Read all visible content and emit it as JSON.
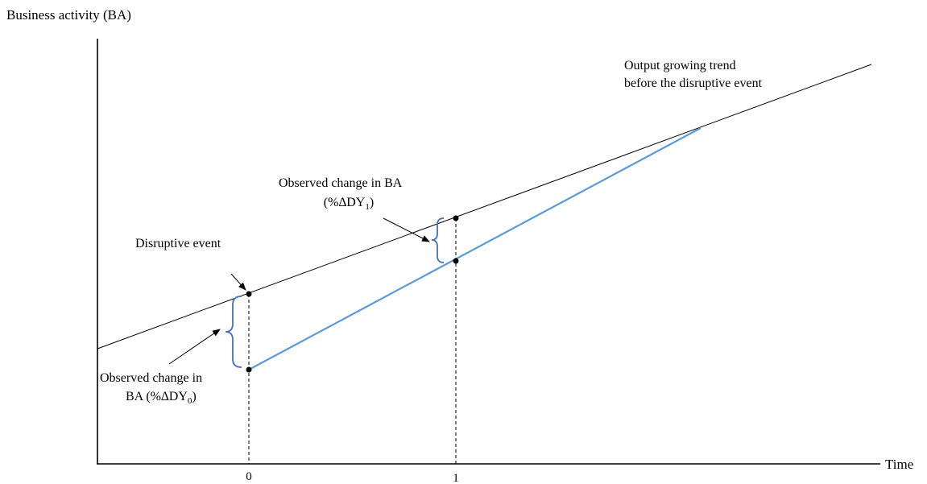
{
  "y_axis_label": "Business activity (BA)",
  "x_axis_label": "Time",
  "x_ticks": [
    "0",
    "1"
  ],
  "trend_label_line1": "Output growing trend",
  "trend_label_line2": "before the disruptive event",
  "disruptive_event_label": "Disruptive event",
  "change1": {
    "line1": "Observed change in BA",
    "open": "(%",
    "delta": "∆",
    "dy": "DY",
    "sub": "1",
    "close": ")"
  },
  "change0": {
    "line1": "Observed change in",
    "prefix": "BA (%",
    "delta": "∆",
    "dy": "DY",
    "sub": "0",
    "close": ")"
  },
  "colors": {
    "trend_line": "#000000",
    "post_event_line": "#5b9bd5",
    "brace": "#4a6fb5"
  }
}
